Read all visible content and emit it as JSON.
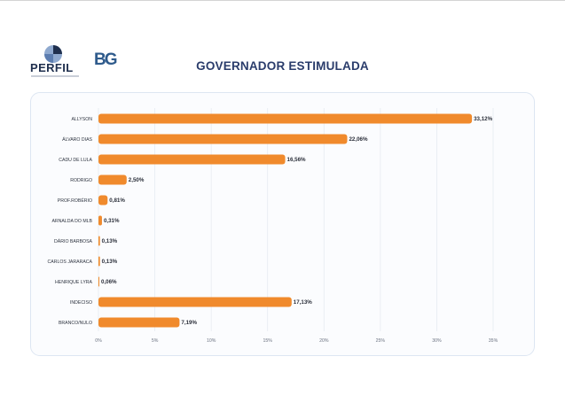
{
  "header": {
    "perfil_logo_text": "PERFIL",
    "bg_logo_text": "BG",
    "title": "GOVERNADOR ESTIMULADA"
  },
  "colors": {
    "bar": "#f08a2c",
    "title": "#2a3c6b",
    "label": "#2e3440",
    "grid": "#e6eaf1"
  },
  "chart_data": {
    "type": "bar",
    "orientation": "horizontal",
    "title": "GOVERNADOR ESTIMULADA",
    "categories": [
      "ALLYSON",
      "ÁLVARO DIAS",
      "CADU DE LULA",
      "RODRIGO",
      "PROF.ROBÉRIO",
      "ARNALDA DO MLB",
      "DÁRIO BARBOSA",
      "CARLOS JARARACA",
      "HENRIQUE LYRA",
      "INDECISO",
      "BRANCO/NULO"
    ],
    "values": [
      33.12,
      22.06,
      16.56,
      2.5,
      0.81,
      0.31,
      0.13,
      0.13,
      0.06,
      17.13,
      7.19
    ],
    "value_labels": [
      "33,12%",
      "22,06%",
      "16,56%",
      "2,50%",
      "0,81%",
      "0,31%",
      "0,13%",
      "0,13%",
      "0,06%",
      "17,13%",
      "7,19%"
    ],
    "xticks": [
      0,
      5,
      10,
      15,
      20,
      25,
      30,
      35
    ],
    "xtick_labels": [
      "0%",
      "5%",
      "10%",
      "15%",
      "20%",
      "25%",
      "30%",
      "35%"
    ],
    "xlim": [
      0,
      35
    ],
    "grid": true
  }
}
